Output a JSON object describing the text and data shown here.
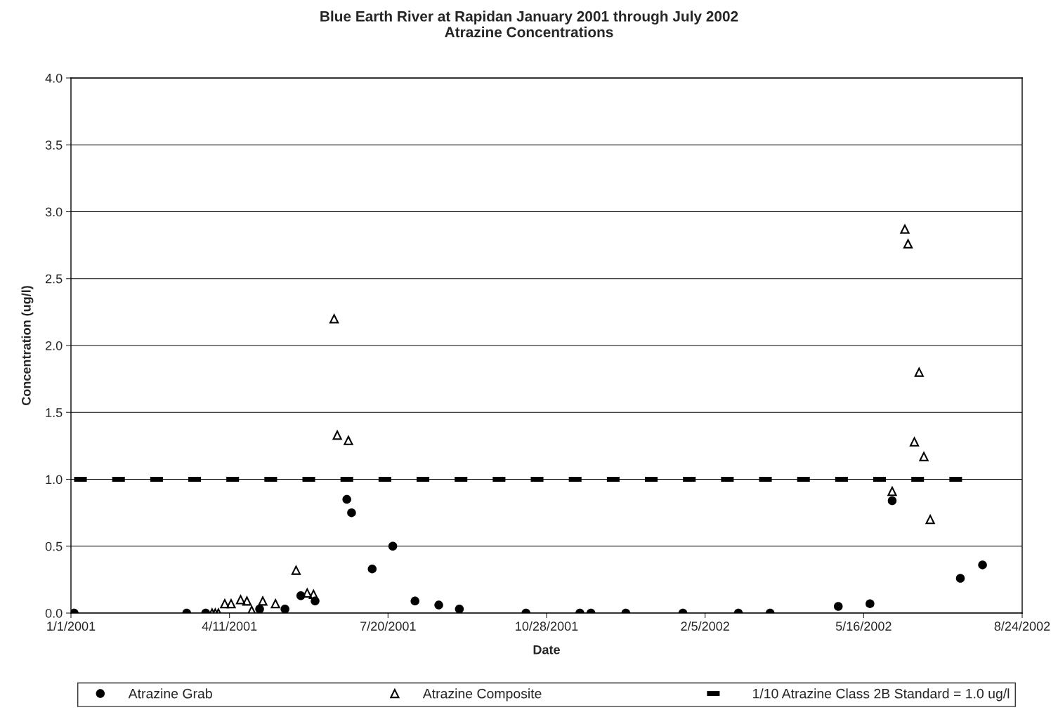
{
  "chart_data": {
    "type": "scatter",
    "title": "Blue Earth River at Rapidan January 2001 through July 2002\nAtrazine Concentrations",
    "xlabel": "Date",
    "ylabel": "Concentration (ug/l)",
    "xlim": [
      "2001-01-01",
      "2002-08-24"
    ],
    "xticks": [
      {
        "value": "2001-01-01",
        "label": "1/1/2001"
      },
      {
        "value": "2001-04-11",
        "label": "4/11/2001"
      },
      {
        "value": "2001-07-20",
        "label": "7/20/2001"
      },
      {
        "value": "2001-10-28",
        "label": "10/28/2001"
      },
      {
        "value": "2002-02-05",
        "label": "2/5/2002"
      },
      {
        "value": "2002-05-16",
        "label": "5/16/2002"
      },
      {
        "value": "2002-08-24",
        "label": "8/24/2002"
      }
    ],
    "ylim": [
      0,
      4.0
    ],
    "yticks": [
      {
        "value": 0,
        "label": "0.0"
      },
      {
        "value": 0.5,
        "label": "0.5"
      },
      {
        "value": 1.0,
        "label": "1.0"
      },
      {
        "value": 1.5,
        "label": "1.5"
      },
      {
        "value": 2.0,
        "label": "2.0"
      },
      {
        "value": 2.5,
        "label": "2.5"
      },
      {
        "value": 3.0,
        "label": "3.0"
      },
      {
        "value": 3.5,
        "label": "3.5"
      },
      {
        "value": 4.0,
        "label": "4.0"
      }
    ],
    "grid": "y",
    "legend": "bottom",
    "series": [
      {
        "name": "Atrazine Grab",
        "marker": "circle",
        "color": "#000000",
        "x": [
          "2001-01-03",
          "2001-03-15",
          "2001-03-27",
          "2001-04-30",
          "2001-05-16",
          "2001-05-26",
          "2001-06-04",
          "2001-06-24",
          "2001-06-27",
          "2001-07-10",
          "2001-07-23",
          "2001-08-06",
          "2001-08-21",
          "2001-09-03",
          "2001-10-15",
          "2001-11-18",
          "2001-11-25",
          "2001-12-17",
          "2002-01-22",
          "2002-02-26",
          "2002-03-18",
          "2002-04-30",
          "2002-05-20",
          "2002-06-03",
          "2002-07-16",
          "2002-07-30"
        ],
        "values": [
          0,
          0,
          0,
          0.03,
          0.03,
          0.13,
          0.09,
          0.85,
          0.75,
          0.33,
          0.5,
          0.09,
          0.06,
          0.03,
          0,
          0,
          0,
          0,
          0,
          0,
          0,
          0.05,
          0.07,
          0.84,
          0.26,
          0.36
        ]
      },
      {
        "name": "Atrazine Composite",
        "marker": "triangle",
        "color": "#000000",
        "x": [
          "2001-03-31",
          "2001-04-02",
          "2001-04-04",
          "2001-04-08",
          "2001-04-12",
          "2001-04-18",
          "2001-04-22",
          "2001-04-25",
          "2001-05-02",
          "2001-05-10",
          "2001-05-23",
          "2001-05-30",
          "2001-06-03",
          "2001-06-16",
          "2001-06-18",
          "2001-06-25",
          "2002-06-03",
          "2002-06-11",
          "2002-06-13",
          "2002-06-17",
          "2002-06-20",
          "2002-06-23",
          "2002-06-27"
        ],
        "values": [
          0,
          0,
          0,
          0.07,
          0.07,
          0.1,
          0.09,
          0.02,
          0.09,
          0.07,
          0.32,
          0.15,
          0.14,
          2.2,
          1.33,
          1.29,
          0.91,
          2.87,
          2.76,
          1.28,
          1.8,
          1.17,
          0.7
        ]
      },
      {
        "name": "1/10 Atrazine Class 2B Standard = 1.0 ug/l",
        "type": "line",
        "line_style": "dashed",
        "marker": "none",
        "color": "#000000",
        "x": [
          "2001-01-03",
          "2002-07-21"
        ],
        "values": [
          1.0,
          1.0
        ]
      }
    ]
  }
}
